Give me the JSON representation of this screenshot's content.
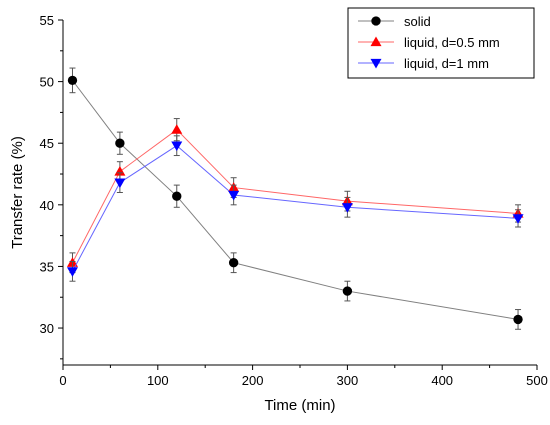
{
  "chart_data": {
    "type": "line",
    "xlabel": "Time (min)",
    "ylabel": "Transfer rate (%)",
    "xlim": [
      0,
      500
    ],
    "ylim": [
      27,
      55
    ],
    "xticks": [
      0,
      100,
      200,
      300,
      400,
      500
    ],
    "yticks": [
      30,
      35,
      40,
      45,
      50,
      55
    ],
    "grid": false,
    "legend_position": "top-right",
    "series": [
      {
        "name": "solid",
        "marker": "circle",
        "color": "#000000",
        "line_color": "#808080",
        "x": [
          10,
          60,
          120,
          180,
          300,
          480
        ],
        "y": [
          50.1,
          45.0,
          40.7,
          35.3,
          33.0,
          30.7
        ],
        "err": [
          1.0,
          0.9,
          0.9,
          0.8,
          0.8,
          0.8
        ]
      },
      {
        "name": "liquid, d=0.5 mm",
        "marker": "triangle-up",
        "color": "#ff0000",
        "line_color": "#ff6666",
        "x": [
          10,
          60,
          120,
          180,
          300,
          480
        ],
        "y": [
          35.3,
          42.7,
          46.1,
          41.4,
          40.3,
          39.3
        ],
        "err": [
          0.8,
          0.8,
          0.9,
          0.8,
          0.8,
          0.7
        ]
      },
      {
        "name": "liquid, d=1 mm",
        "marker": "triangle-down",
        "color": "#0000ff",
        "line_color": "#6666ff",
        "x": [
          10,
          60,
          120,
          180,
          300,
          480
        ],
        "y": [
          34.6,
          41.8,
          44.8,
          40.8,
          39.8,
          38.9
        ],
        "err": [
          0.8,
          0.8,
          0.8,
          0.8,
          0.8,
          0.7
        ]
      }
    ]
  }
}
